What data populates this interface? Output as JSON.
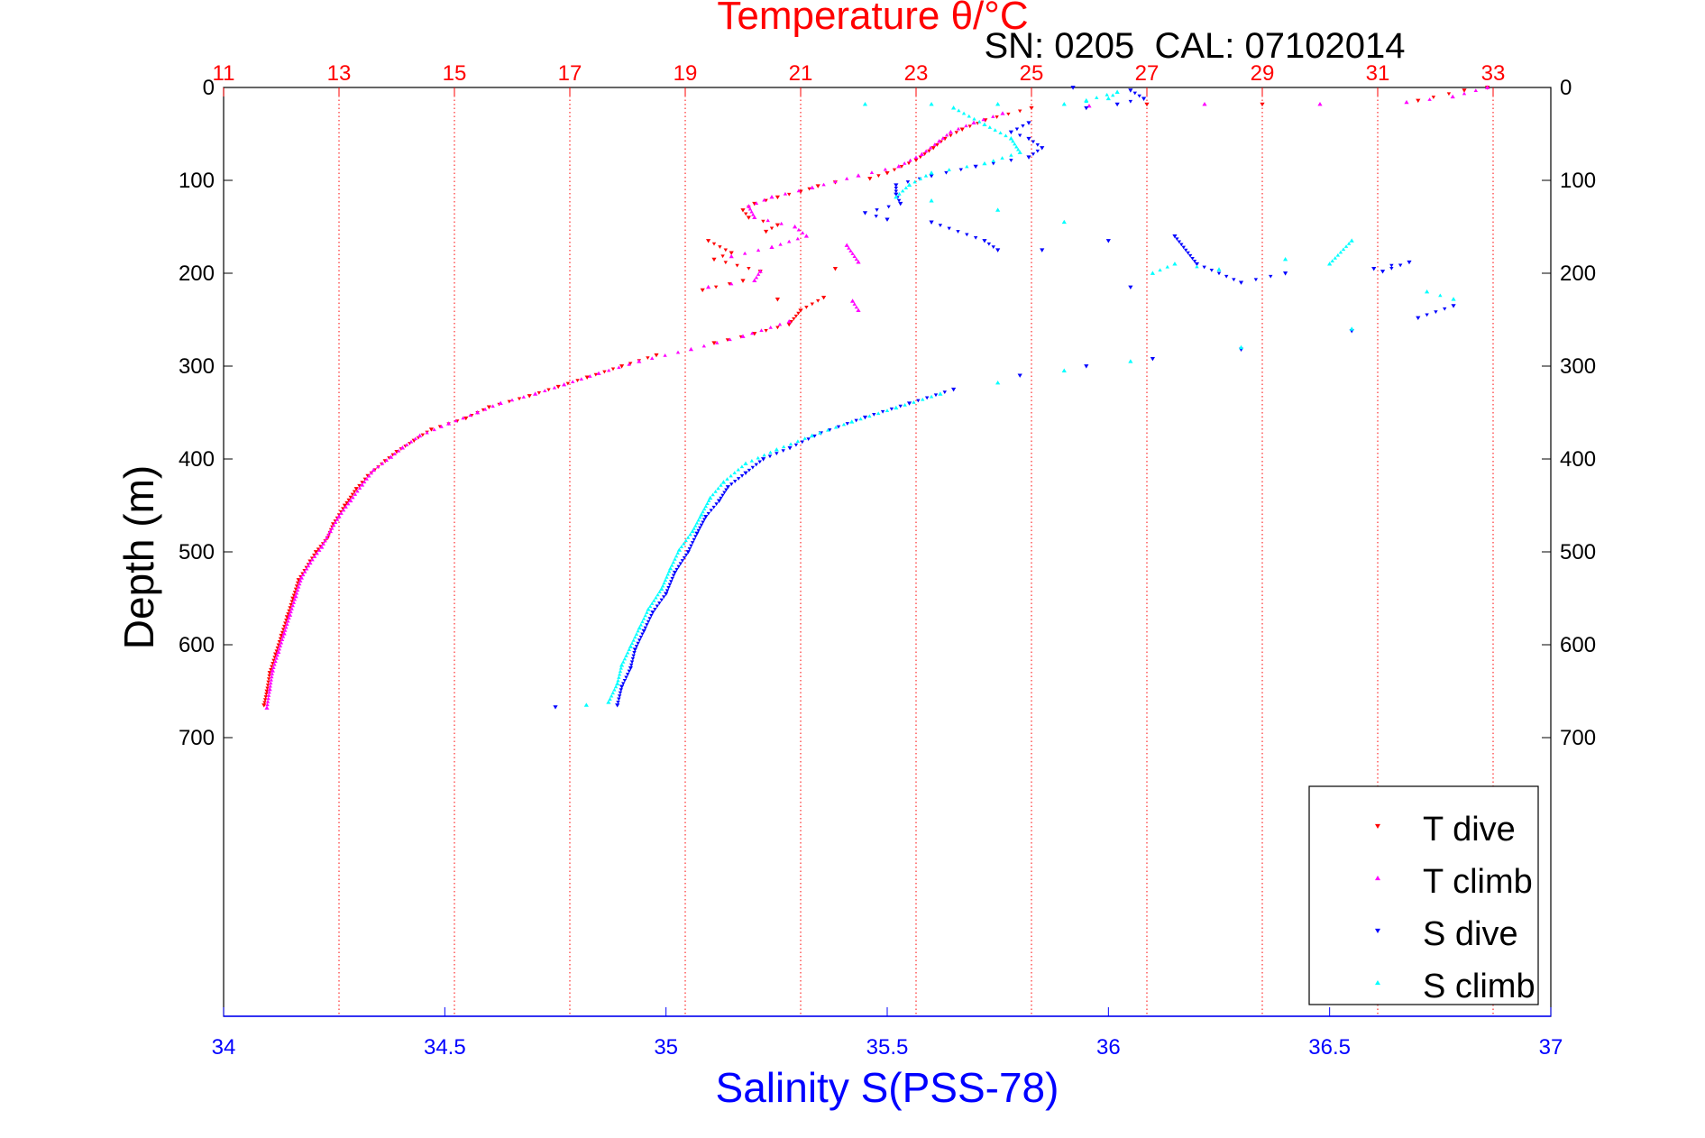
{
  "chart_data": {
    "type": "scatter",
    "title": "Temperature θ/°C",
    "subtitle": "SN: 0205  CAL: 07102014",
    "xlabel_temperature": "Temperature θ/°C",
    "xlabel_salinity": "Salinity S(PSS-78)",
    "ylabel": "Depth (m)",
    "temperature_axis": {
      "range": [
        11,
        34
      ],
      "ticks": [
        11,
        13,
        15,
        17,
        19,
        21,
        23,
        25,
        27,
        29,
        31,
        33
      ],
      "color": "#ff0000",
      "position": "top"
    },
    "salinity_axis": {
      "range": [
        34,
        37
      ],
      "ticks": [
        "34",
        "34.5",
        "35",
        "35.5",
        "36",
        "36.5",
        "37"
      ],
      "color": "#0000ff",
      "position": "bottom"
    },
    "depth_axis": {
      "range": [
        0,
        1000
      ],
      "reversed": true,
      "ticks": [
        0,
        100,
        200,
        300,
        400,
        500,
        600,
        700
      ]
    },
    "grid": "vertical dotted red at temperature ticks",
    "legend": {
      "placement": "bottom-right",
      "entries": [
        "T dive",
        "T climb",
        "S dive",
        "S climb"
      ]
    },
    "series": [
      {
        "name": "T dive",
        "variable": "temperature",
        "color": "#ff0000",
        "marker": "triangle-down",
        "points": [
          [
            32.9,
            0
          ],
          [
            32.5,
            3
          ],
          [
            31.7,
            14
          ],
          [
            29,
            18
          ],
          [
            27,
            18
          ],
          [
            25,
            22
          ],
          [
            24.2,
            35
          ],
          [
            23.8,
            45
          ],
          [
            23.5,
            55
          ],
          [
            23.3,
            65
          ],
          [
            23,
            78
          ],
          [
            22.5,
            92
          ],
          [
            22.2,
            98
          ],
          [
            21.6,
            102
          ],
          [
            21.3,
            106
          ],
          [
            21,
            112
          ],
          [
            20.6,
            118
          ],
          [
            20.2,
            125
          ],
          [
            20,
            132
          ],
          [
            20.1,
            140
          ],
          [
            20.6,
            148
          ],
          [
            20.4,
            155
          ],
          [
            19.4,
            165
          ],
          [
            19.8,
            178
          ],
          [
            19.5,
            185
          ],
          [
            20.3,
            198
          ],
          [
            21.6,
            195
          ],
          [
            20,
            208
          ],
          [
            19.3,
            218
          ],
          [
            20.6,
            228
          ],
          [
            21.4,
            226
          ],
          [
            21,
            240
          ],
          [
            20.8,
            255
          ],
          [
            20.2,
            265
          ],
          [
            19.5,
            275
          ],
          [
            18.5,
            288
          ],
          [
            17.9,
            300
          ],
          [
            17.3,
            312
          ],
          [
            16.8,
            322
          ],
          [
            16.3,
            332
          ],
          [
            15.6,
            344
          ],
          [
            15.2,
            356
          ],
          [
            14.6,
            368
          ],
          [
            14.3,
            380
          ],
          [
            14,
            392
          ],
          [
            13.8,
            402
          ],
          [
            13.5,
            418
          ],
          [
            13.3,
            432
          ],
          [
            13.1,
            450
          ],
          [
            12.9,
            470
          ],
          [
            12.8,
            485
          ],
          [
            12.6,
            500
          ],
          [
            12.5,
            510
          ],
          [
            12.3,
            530
          ],
          [
            12.2,
            550
          ],
          [
            12.1,
            570
          ],
          [
            12,
            590
          ],
          [
            11.9,
            610
          ],
          [
            11.8,
            630
          ],
          [
            11.75,
            650
          ],
          [
            11.7,
            665
          ]
        ]
      },
      {
        "name": "T climb",
        "variable": "temperature",
        "color": "#ff00ff",
        "marker": "triangle-up",
        "points": [
          [
            32.9,
            0
          ],
          [
            32.3,
            10
          ],
          [
            31.5,
            16
          ],
          [
            30,
            18
          ],
          [
            28,
            18
          ],
          [
            26,
            20
          ],
          [
            24.5,
            28
          ],
          [
            24,
            38
          ],
          [
            23.6,
            48
          ],
          [
            23.4,
            58
          ],
          [
            23.1,
            72
          ],
          [
            22.7,
            85
          ],
          [
            22,
            95
          ],
          [
            21.2,
            108
          ],
          [
            20.5,
            118
          ],
          [
            20.1,
            128
          ],
          [
            20.2,
            140
          ],
          [
            20.9,
            150
          ],
          [
            21.1,
            160
          ],
          [
            20.5,
            172
          ],
          [
            19.8,
            182
          ],
          [
            21.8,
            170
          ],
          [
            22,
            188
          ],
          [
            20.3,
            198
          ],
          [
            20.2,
            208
          ],
          [
            19.4,
            215
          ],
          [
            21.9,
            230
          ],
          [
            22,
            240
          ],
          [
            20.8,
            252
          ],
          [
            20,
            268
          ],
          [
            19.1,
            282
          ],
          [
            18.2,
            295
          ],
          [
            17.5,
            308
          ],
          [
            16.9,
            320
          ],
          [
            16.4,
            330
          ],
          [
            15.8,
            340
          ],
          [
            15.4,
            350
          ],
          [
            14.9,
            362
          ],
          [
            14.4,
            375
          ],
          [
            14.1,
            388
          ],
          [
            13.9,
            398
          ],
          [
            13.6,
            412
          ],
          [
            13.4,
            428
          ],
          [
            13.2,
            445
          ],
          [
            13,
            462
          ],
          [
            12.85,
            478
          ],
          [
            12.7,
            495
          ],
          [
            12.5,
            512
          ],
          [
            12.35,
            528
          ],
          [
            12.25,
            548
          ],
          [
            12.15,
            568
          ],
          [
            12.05,
            588
          ],
          [
            11.95,
            608
          ],
          [
            11.85,
            628
          ],
          [
            11.8,
            648
          ],
          [
            11.75,
            668
          ]
        ]
      },
      {
        "name": "S dive",
        "variable": "salinity",
        "color": "#0000ff",
        "marker": "triangle-down",
        "points": [
          [
            35.92,
            0
          ],
          [
            36.05,
            3
          ],
          [
            36.08,
            12
          ],
          [
            36.02,
            18
          ],
          [
            35.95,
            22
          ],
          [
            35.82,
            38
          ],
          [
            35.78,
            48
          ],
          [
            35.82,
            55
          ],
          [
            35.85,
            65
          ],
          [
            35.82,
            75
          ],
          [
            35.7,
            85
          ],
          [
            35.6,
            95
          ],
          [
            35.52,
            105
          ],
          [
            35.52,
            115
          ],
          [
            35.53,
            125
          ],
          [
            35.45,
            135
          ],
          [
            35.5,
            142
          ],
          [
            35.6,
            145
          ],
          [
            35.72,
            165
          ],
          [
            35.75,
            175
          ],
          [
            35.85,
            175
          ],
          [
            36,
            165
          ],
          [
            36.15,
            160
          ],
          [
            36.2,
            190
          ],
          [
            36.3,
            210
          ],
          [
            36.4,
            200
          ],
          [
            36.05,
            215
          ],
          [
            36.6,
            195
          ],
          [
            36.68,
            188
          ],
          [
            36.62,
            198
          ],
          [
            36.78,
            235
          ],
          [
            36.7,
            248
          ],
          [
            36.55,
            262
          ],
          [
            36.3,
            282
          ],
          [
            36.1,
            292
          ],
          [
            35.95,
            300
          ],
          [
            35.8,
            310
          ],
          [
            35.65,
            325
          ],
          [
            35.55,
            340
          ],
          [
            35.45,
            355
          ],
          [
            35.35,
            372
          ],
          [
            35.28,
            388
          ],
          [
            35.22,
            400
          ],
          [
            35.18,
            415
          ],
          [
            35.14,
            430
          ],
          [
            35.12,
            445
          ],
          [
            35.09,
            462
          ],
          [
            35.07,
            480
          ],
          [
            35.05,
            500
          ],
          [
            35.02,
            522
          ],
          [
            35,
            545
          ],
          [
            34.97,
            565
          ],
          [
            34.95,
            585
          ],
          [
            34.93,
            605
          ],
          [
            34.92,
            625
          ],
          [
            34.9,
            645
          ],
          [
            34.89,
            665
          ],
          [
            34.75,
            667
          ]
        ]
      },
      {
        "name": "S climb",
        "variable": "salinity",
        "color": "#00ffff",
        "marker": "triangle-up",
        "points": [
          [
            35.45,
            18
          ],
          [
            35.6,
            18
          ],
          [
            35.75,
            18
          ],
          [
            35.9,
            18
          ],
          [
            36,
            12
          ],
          [
            36.02,
            5
          ],
          [
            35.95,
            14
          ],
          [
            35.65,
            22
          ],
          [
            35.72,
            40
          ],
          [
            35.78,
            55
          ],
          [
            35.8,
            70
          ],
          [
            35.72,
            82
          ],
          [
            35.6,
            92
          ],
          [
            35.55,
            105
          ],
          [
            35.52,
            118
          ],
          [
            35.6,
            122
          ],
          [
            35.75,
            132
          ],
          [
            35.9,
            145
          ],
          [
            36.1,
            200
          ],
          [
            36.15,
            190
          ],
          [
            36.25,
            196
          ],
          [
            36.4,
            185
          ],
          [
            36.5,
            190
          ],
          [
            36.55,
            165
          ],
          [
            36.72,
            220
          ],
          [
            36.78,
            228
          ],
          [
            36.55,
            260
          ],
          [
            36.3,
            280
          ],
          [
            36.05,
            295
          ],
          [
            35.9,
            305
          ],
          [
            35.75,
            318
          ],
          [
            35.62,
            330
          ],
          [
            35.52,
            345
          ],
          [
            35.42,
            360
          ],
          [
            35.33,
            375
          ],
          [
            35.25,
            390
          ],
          [
            35.18,
            405
          ],
          [
            35.13,
            425
          ],
          [
            35.1,
            442
          ],
          [
            35.08,
            460
          ],
          [
            35.06,
            478
          ],
          [
            35.03,
            498
          ],
          [
            35.01,
            518
          ],
          [
            34.99,
            540
          ],
          [
            34.96,
            562
          ],
          [
            34.94,
            582
          ],
          [
            34.92,
            602
          ],
          [
            34.9,
            622
          ],
          [
            34.89,
            642
          ],
          [
            34.87,
            662
          ],
          [
            34.82,
            665
          ]
        ]
      }
    ]
  }
}
